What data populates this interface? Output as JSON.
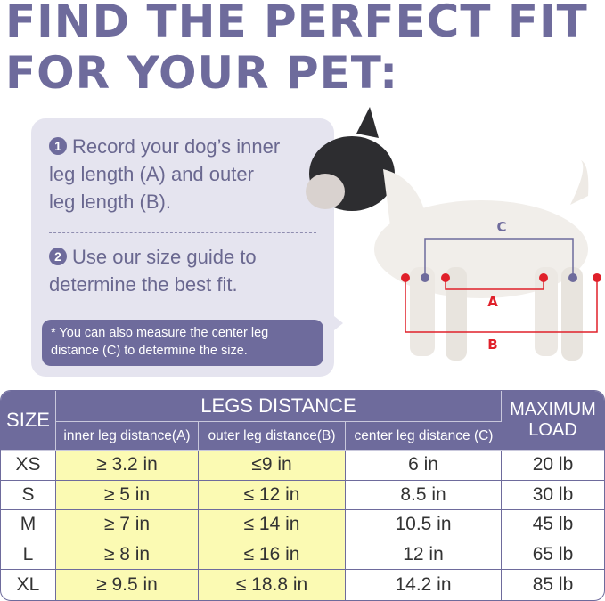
{
  "title": {
    "line1": "FIND THE PERFECT FIT",
    "line2": "FOR YOUR PET:"
  },
  "steps": [
    {
      "num": "1",
      "lines": [
        "Record your dog’s inner",
        "leg length (A) and outer",
        "leg length (B)."
      ]
    },
    {
      "num": "2",
      "lines": [
        "Use our size guide to",
        "determine the best fit."
      ]
    }
  ],
  "note": "* You can also measure the center leg distance (C) to determine the size.",
  "diagram": {
    "labels": {
      "a": "A",
      "b": "B",
      "c": "C"
    }
  },
  "table": {
    "size_header": "SIZE",
    "group_header": "LEGS DISTANCE",
    "load_header": "MAXIMUM LOAD",
    "columns": [
      "inner leg distance(A)",
      "outer leg distance(B)",
      "center leg distance (C)"
    ],
    "rows": [
      [
        "XS",
        "≥ 3.2 in",
        "≤9 in",
        "6 in",
        "20 lb"
      ],
      [
        "S",
        "≥ 5 in",
        "≤ 12 in",
        "8.5 in",
        "30 lb"
      ],
      [
        "M",
        "≥ 7 in",
        "≤ 14 in",
        "10.5 in",
        "45 lb"
      ],
      [
        "L",
        "≥ 8 in",
        "≤ 16 in",
        "12 in",
        "65 lb"
      ],
      [
        "XL",
        "≥ 9.5 in",
        "≤ 18.8 in",
        "14.2 in",
        "85 lb"
      ]
    ]
  },
  "colors": {
    "accent": "#6e6b9c",
    "highlight": "#fbfab3",
    "bubble": "#e5e4ef",
    "measure_red": "#e0202a"
  }
}
